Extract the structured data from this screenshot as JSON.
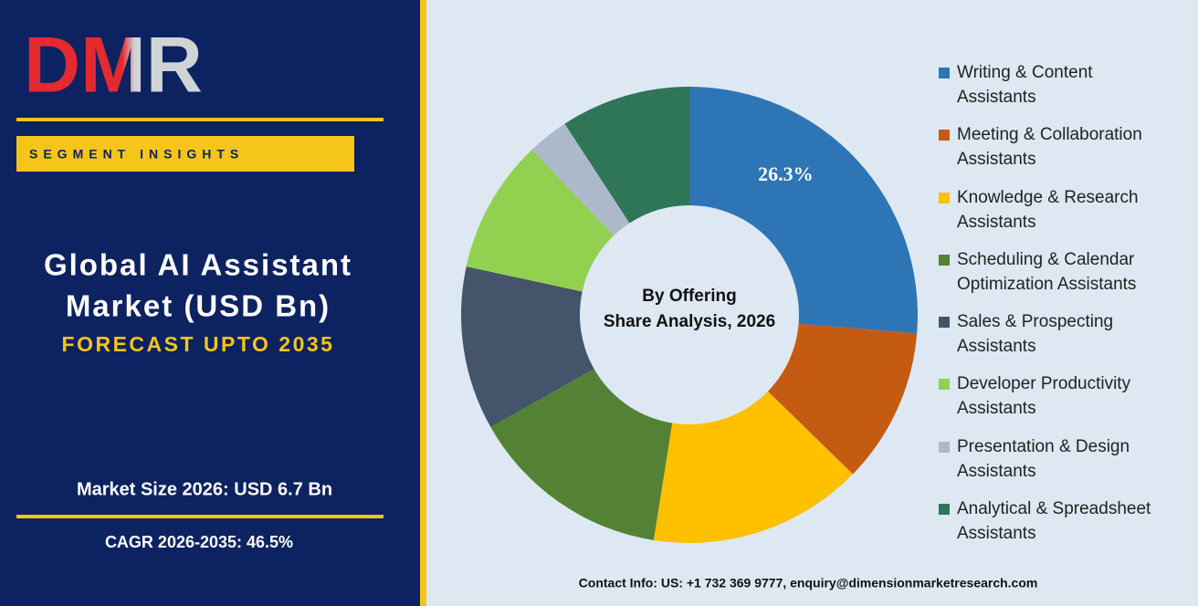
{
  "logo": "DMR",
  "panel": {
    "tag": "SEGMENT INSIGHTS",
    "title_line1": "Global AI Assistant",
    "title_line2": "Market (USD Bn)",
    "subtitle": "FORECAST UPTO 2035",
    "market_size": "Market Size 2026: USD 6.7 Bn",
    "cagr": "CAGR 2026-2035: 46.5%"
  },
  "chart_data": {
    "type": "donut",
    "center_text": [
      "By Offering",
      "Share Analysis, 2026"
    ],
    "categories": [
      "Writing & Content Assistants",
      "Meeting & Collaboration Assistants",
      "Knowledge & Research Assistants",
      "Scheduling & Calendar Optimization Assistants",
      "Sales & Prospecting Assistants",
      "Developer Productivity Assistants",
      "Presentation & Design Assistants",
      "Analytical & Spreadsheet Assistants"
    ],
    "values": [
      26.3,
      11.0,
      15.2,
      14.3,
      11.6,
      9.5,
      2.9,
      9.2
    ],
    "value_labels": [
      "26.3%",
      null,
      null,
      null,
      null,
      null,
      null,
      null
    ],
    "colors": [
      "#2e75b6",
      "#c55a11",
      "#ffc000",
      "#548235",
      "#44546a",
      "#92d050",
      "#adb9ca",
      "#2f7558"
    ]
  },
  "contact": "Contact Info: US: +1 732 369 9777, enquiry@dimensionmarketresearch.com"
}
